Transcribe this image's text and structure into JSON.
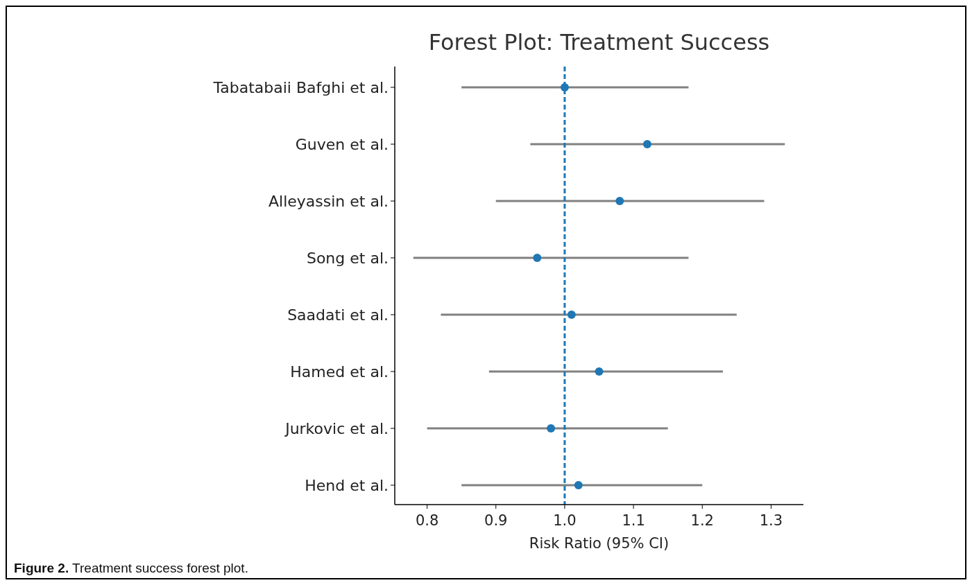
{
  "chart_data": {
    "type": "scatter",
    "orientation": "horizontal",
    "title": "Forest Plot: Treatment Success",
    "xlabel": "Risk Ratio (95% CI)",
    "categories": [
      "Tabatabaii Bafghi et al.",
      "Guven et al.",
      "Alleyassin et al.",
      "Song et al.",
      "Saadati et al.",
      "Hamed et al.",
      "Jurkovic et al.",
      "Hend et al."
    ],
    "values": [
      1.0,
      1.12,
      1.08,
      0.96,
      1.01,
      1.05,
      0.98,
      1.02
    ],
    "errors": [
      [
        0.85,
        1.18
      ],
      [
        0.95,
        1.32
      ],
      [
        0.9,
        1.29
      ],
      [
        0.78,
        1.18
      ],
      [
        0.82,
        1.25
      ],
      [
        0.89,
        1.23
      ],
      [
        0.8,
        1.15
      ],
      [
        0.85,
        1.2
      ]
    ],
    "color": "#1f77b4",
    "marker": "circle",
    "xlim": [
      0.753,
      1.347
    ],
    "xticks": [
      {
        "value": 0.8,
        "label": "0.8"
      },
      {
        "value": 0.9,
        "label": "0.9"
      },
      {
        "value": 1.0,
        "label": "1.0"
      },
      {
        "value": 1.1,
        "label": "1.1"
      },
      {
        "value": 1.2,
        "label": "1.2"
      },
      {
        "value": 1.3,
        "label": "1.3"
      }
    ],
    "ref_lines": [
      {
        "axis": "x",
        "value": 1.0,
        "color": "#1f77b4",
        "line_style": "dashed"
      }
    ],
    "grid": false,
    "annotations": [
      "Figure 2. Treatment success forest plot."
    ]
  }
}
